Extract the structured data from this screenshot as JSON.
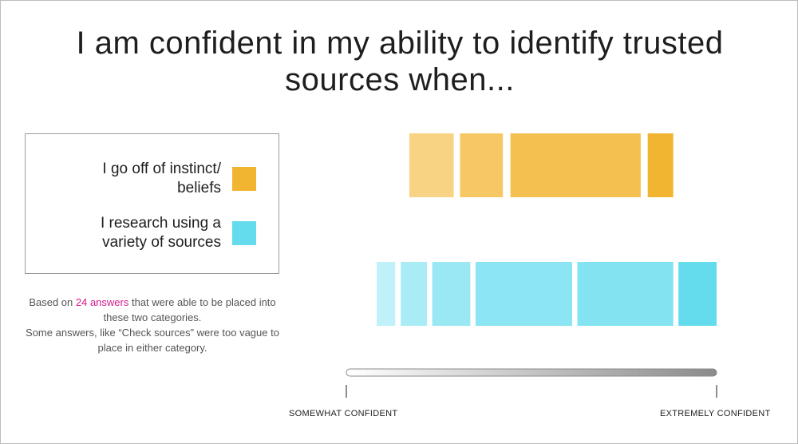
{
  "title": "I am confident in my ability to identify trusted sources when...",
  "legend": [
    {
      "label": "I go off of instinct/ beliefs",
      "color": "#f2b531"
    },
    {
      "label": "I research using a variety of sources",
      "color": "#64dced"
    }
  ],
  "note": {
    "prefix": "Based on ",
    "highlight": "24 answers",
    "rest": " that were able to be placed into these two categories.",
    "line2": "Some answers, like “Check sources” were too vague to place in either category."
  },
  "scale": {
    "left_label": "SOMEWHAT CONFIDENT",
    "right_label": "EXTREMELY CONFIDENT"
  },
  "chart_data": {
    "type": "bar",
    "xlabel": "",
    "ylabel": "",
    "xlim": [
      0,
      1
    ],
    "series": [
      {
        "name": "I go off of instinct/ beliefs",
        "base_color": "#f2b531",
        "segments": [
          {
            "start": 0.17,
            "end": 0.29,
            "opacity": 0.6
          },
          {
            "start": 0.307,
            "end": 0.423,
            "opacity": 0.75
          },
          {
            "start": 0.443,
            "end": 0.795,
            "opacity": 0.85
          },
          {
            "start": 0.814,
            "end": 0.883,
            "opacity": 1.0
          }
        ]
      },
      {
        "name": "I research using a variety of sources",
        "base_color": "#64dced",
        "segments": [
          {
            "start": 0.082,
            "end": 0.132,
            "opacity": 0.4
          },
          {
            "start": 0.147,
            "end": 0.218,
            "opacity": 0.55
          },
          {
            "start": 0.232,
            "end": 0.335,
            "opacity": 0.65
          },
          {
            "start": 0.349,
            "end": 0.61,
            "opacity": 0.75
          },
          {
            "start": 0.624,
            "end": 0.883,
            "opacity": 0.8
          },
          {
            "start": 0.897,
            "end": 1.0,
            "opacity": 1.0
          }
        ]
      }
    ]
  }
}
